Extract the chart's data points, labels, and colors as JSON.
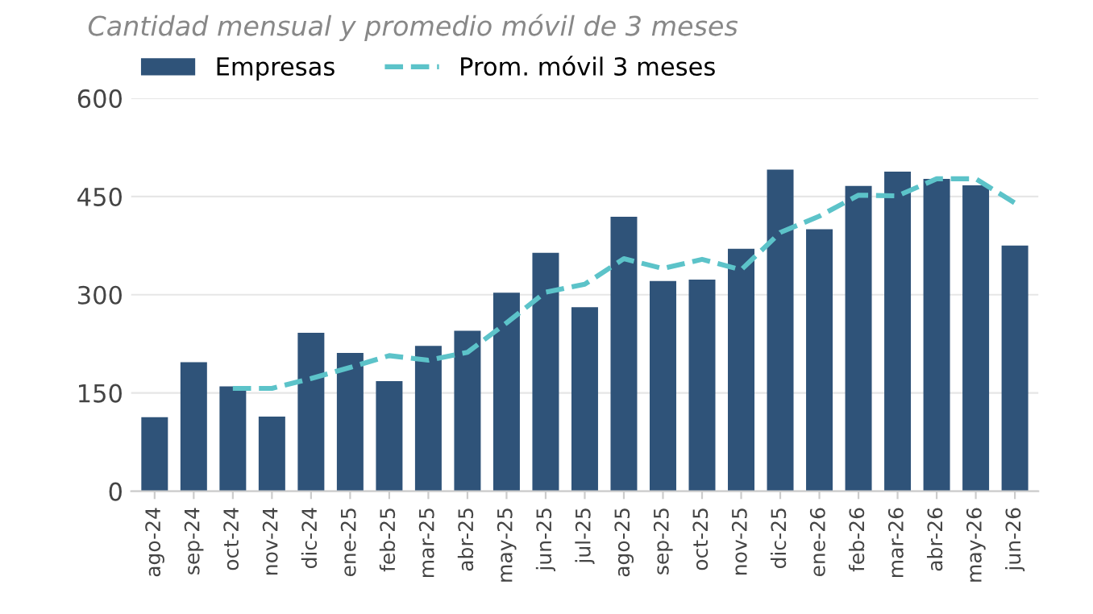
{
  "chart_data": {
    "type": "bar",
    "subtitle": "Cantidad mensual y promedio móvil de 3 meses",
    "categories": [
      "ago-24",
      "sep-24",
      "oct-24",
      "nov-24",
      "dic-24",
      "ene-25",
      "feb-25",
      "mar-25",
      "abr-25",
      "may-25",
      "jun-25",
      "jul-25",
      "ago-25",
      "sep-25",
      "oct-25",
      "nov-25",
      "dic-25",
      "ene-26",
      "feb-26",
      "mar-26",
      "abr-26",
      "may-26",
      "jun-26"
    ],
    "series": [
      {
        "name": "Empresas",
        "color": "#2f5379",
        "values": [
          113,
          197,
          160,
          114,
          242,
          211,
          168,
          222,
          245,
          303,
          364,
          281,
          419,
          321,
          323,
          370,
          491,
          400,
          466,
          488,
          477,
          467,
          375
        ]
      },
      {
        "name": "Prom. móvil 3 meses",
        "type": "line",
        "color": "#5cc3c9",
        "line_style": "dashed",
        "values": [
          null,
          null,
          157,
          157,
          172,
          189,
          207,
          200,
          212,
          257,
          304,
          316,
          355,
          340,
          354,
          338,
          395,
          420,
          452,
          451,
          477,
          477,
          440
        ]
      }
    ],
    "ylim": [
      0,
      600
    ],
    "yticks": [
      0,
      150,
      300,
      450,
      600
    ],
    "grid": "y",
    "legend": "top left"
  }
}
